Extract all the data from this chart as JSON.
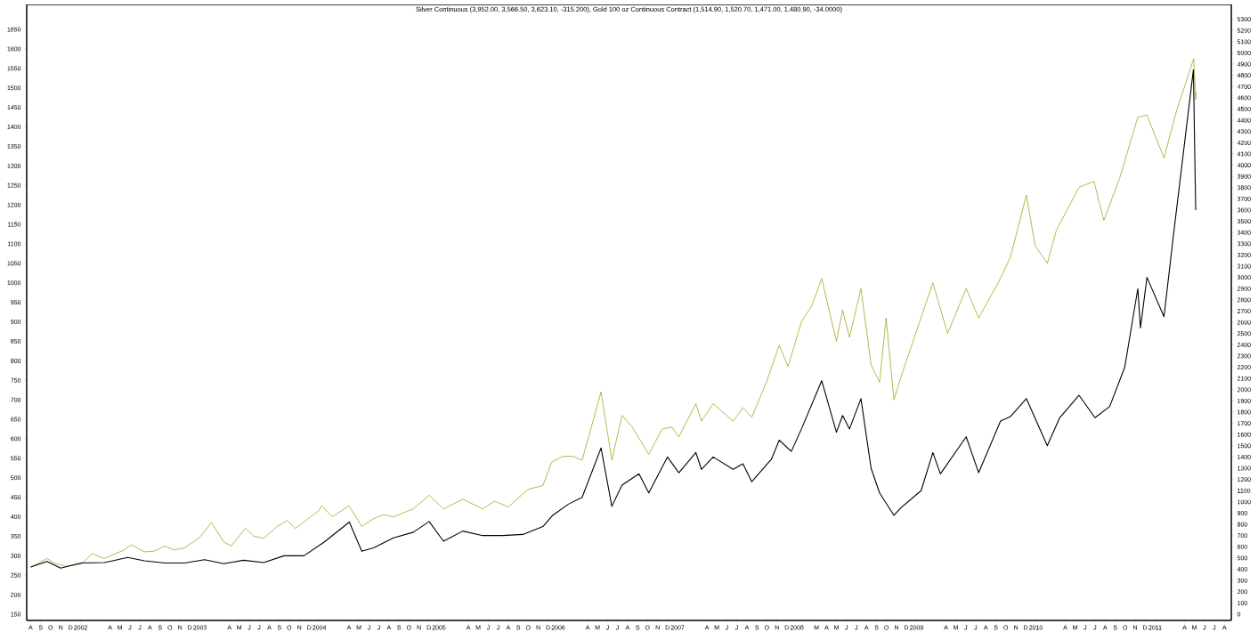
{
  "chart_data": {
    "type": "line",
    "title": "Silver Continuous (3,952.00, 3,566.50, 3,623.10, -315.200), Gold 100 oz Continuous Contract (1,514.90, 1,520.70, 1,471.00, 1,480.90, -34.0000)",
    "xlim": [
      "2001-07-20",
      "2011-08-22"
    ],
    "ylim": [
      134,
      1714
    ],
    "y2lim": [
      -56,
      5432
    ],
    "yticks": [
      150,
      200,
      250,
      300,
      350,
      400,
      450,
      500,
      550,
      600,
      650,
      700,
      750,
      800,
      850,
      900,
      950,
      1000,
      1050,
      1100,
      1150,
      1200,
      1250,
      1300,
      1350,
      1400,
      1450,
      1500,
      1550,
      1600,
      1650
    ],
    "y2ticks": [
      0,
      100,
      200,
      300,
      400,
      500,
      600,
      700,
      800,
      900,
      1000,
      1100,
      1200,
      1300,
      1400,
      1500,
      1600,
      1700,
      1800,
      1900,
      2000,
      2100,
      2200,
      2300,
      2400,
      2500,
      2600,
      2700,
      2800,
      2900,
      3000,
      3100,
      3200,
      3300,
      3400,
      3500,
      3600,
      3700,
      3800,
      3900,
      4000,
      4100,
      4200,
      4300,
      4400,
      4500,
      4600,
      4700,
      4800,
      4900,
      5000,
      5100,
      5200,
      5300
    ],
    "xticks": [
      {
        "value": "2001-08",
        "label": "A"
      },
      {
        "value": "2001-09",
        "label": "S"
      },
      {
        "value": "2001-10",
        "label": "O"
      },
      {
        "value": "2001-11",
        "label": "N"
      },
      {
        "value": "2001-12",
        "label": "D"
      },
      {
        "value": "2002-01",
        "label": "2002"
      },
      {
        "value": "2002-04",
        "label": "A"
      },
      {
        "value": "2002-05",
        "label": "M"
      },
      {
        "value": "2002-06",
        "label": "J"
      },
      {
        "value": "2002-07",
        "label": "J"
      },
      {
        "value": "2002-08",
        "label": "A"
      },
      {
        "value": "2002-09",
        "label": "S"
      },
      {
        "value": "2002-10",
        "label": "O"
      },
      {
        "value": "2002-11",
        "label": "N"
      },
      {
        "value": "2002-12",
        "label": "D"
      },
      {
        "value": "2003-01",
        "label": "2003"
      },
      {
        "value": "2003-04",
        "label": "A"
      },
      {
        "value": "2003-05",
        "label": "M"
      },
      {
        "value": "2003-06",
        "label": "J"
      },
      {
        "value": "2003-07",
        "label": "J"
      },
      {
        "value": "2003-08",
        "label": "A"
      },
      {
        "value": "2003-09",
        "label": "S"
      },
      {
        "value": "2003-10",
        "label": "O"
      },
      {
        "value": "2003-11",
        "label": "N"
      },
      {
        "value": "2003-12",
        "label": "D"
      },
      {
        "value": "2004-01",
        "label": "2004"
      },
      {
        "value": "2004-04",
        "label": "A"
      },
      {
        "value": "2004-05",
        "label": "M"
      },
      {
        "value": "2004-06",
        "label": "J"
      },
      {
        "value": "2004-07",
        "label": "J"
      },
      {
        "value": "2004-08",
        "label": "A"
      },
      {
        "value": "2004-09",
        "label": "S"
      },
      {
        "value": "2004-10",
        "label": "O"
      },
      {
        "value": "2004-11",
        "label": "N"
      },
      {
        "value": "2004-12",
        "label": "D"
      },
      {
        "value": "2005-01",
        "label": "2005"
      },
      {
        "value": "2005-04",
        "label": "A"
      },
      {
        "value": "2005-05",
        "label": "M"
      },
      {
        "value": "2005-06",
        "label": "J"
      },
      {
        "value": "2005-07",
        "label": "J"
      },
      {
        "value": "2005-08",
        "label": "A"
      },
      {
        "value": "2005-09",
        "label": "S"
      },
      {
        "value": "2005-10",
        "label": "O"
      },
      {
        "value": "2005-11",
        "label": "N"
      },
      {
        "value": "2005-12",
        "label": "D"
      },
      {
        "value": "2006-01",
        "label": "2006"
      },
      {
        "value": "2006-04",
        "label": "A"
      },
      {
        "value": "2006-05",
        "label": "M"
      },
      {
        "value": "2006-06",
        "label": "J"
      },
      {
        "value": "2006-07",
        "label": "J"
      },
      {
        "value": "2006-08",
        "label": "A"
      },
      {
        "value": "2006-09",
        "label": "S"
      },
      {
        "value": "2006-10",
        "label": "O"
      },
      {
        "value": "2006-11",
        "label": "N"
      },
      {
        "value": "2006-12",
        "label": "D"
      },
      {
        "value": "2007-01",
        "label": "2007"
      },
      {
        "value": "2007-04",
        "label": "A"
      },
      {
        "value": "2007-05",
        "label": "M"
      },
      {
        "value": "2007-06",
        "label": "J"
      },
      {
        "value": "2007-07",
        "label": "J"
      },
      {
        "value": "2007-08",
        "label": "A"
      },
      {
        "value": "2007-09",
        "label": "S"
      },
      {
        "value": "2007-10",
        "label": "O"
      },
      {
        "value": "2007-11",
        "label": "N"
      },
      {
        "value": "2007-12",
        "label": "D"
      },
      {
        "value": "2008-01",
        "label": "2008"
      },
      {
        "value": "2008-03",
        "label": "M"
      },
      {
        "value": "2008-04",
        "label": "A"
      },
      {
        "value": "2008-05",
        "label": "M"
      },
      {
        "value": "2008-06",
        "label": "J"
      },
      {
        "value": "2008-07",
        "label": "J"
      },
      {
        "value": "2008-08",
        "label": "A"
      },
      {
        "value": "2008-09",
        "label": "S"
      },
      {
        "value": "2008-10",
        "label": "O"
      },
      {
        "value": "2008-11",
        "label": "N"
      },
      {
        "value": "2008-12",
        "label": "D"
      },
      {
        "value": "2009-01",
        "label": "2009"
      },
      {
        "value": "2009-04",
        "label": "A"
      },
      {
        "value": "2009-05",
        "label": "M"
      },
      {
        "value": "2009-06",
        "label": "J"
      },
      {
        "value": "2009-07",
        "label": "J"
      },
      {
        "value": "2009-08",
        "label": "A"
      },
      {
        "value": "2009-09",
        "label": "S"
      },
      {
        "value": "2009-10",
        "label": "O"
      },
      {
        "value": "2009-11",
        "label": "N"
      },
      {
        "value": "2009-12",
        "label": "D"
      },
      {
        "value": "2010-01",
        "label": "2010"
      },
      {
        "value": "2010-04",
        "label": "A"
      },
      {
        "value": "2010-05",
        "label": "M"
      },
      {
        "value": "2010-06",
        "label": "J"
      },
      {
        "value": "2010-07",
        "label": "J"
      },
      {
        "value": "2010-08",
        "label": "A"
      },
      {
        "value": "2010-09",
        "label": "S"
      },
      {
        "value": "2010-10",
        "label": "O"
      },
      {
        "value": "2010-11",
        "label": "N"
      },
      {
        "value": "2010-12",
        "label": "D"
      },
      {
        "value": "2011-01",
        "label": "2011"
      },
      {
        "value": "2011-04",
        "label": "A"
      },
      {
        "value": "2011-05",
        "label": "M"
      },
      {
        "value": "2011-06",
        "label": "J"
      },
      {
        "value": "2011-07",
        "label": "J"
      },
      {
        "value": "2011-08",
        "label": "A"
      }
    ],
    "series": [
      {
        "color": "#999900",
        "x": [
          "2001-08-01",
          "2001-09-20",
          "2001-10-15",
          "2001-11-15",
          "2002-01-02",
          "2002-02-05",
          "2002-03-15",
          "2002-05-15",
          "2002-06-05",
          "2002-07-15",
          "2002-08-15",
          "2002-09-15",
          "2002-10-15",
          "2002-11-15",
          "2002-12-31",
          "2003-02-05",
          "2003-03-15",
          "2003-04-07",
          "2003-05-20",
          "2003-06-15",
          "2003-07-15",
          "2003-08-25",
          "2003-09-25",
          "2003-10-20",
          "2003-12-31",
          "2004-01-08",
          "2004-02-10",
          "2004-04-01",
          "2004-05-10",
          "2004-06-15",
          "2004-07-15",
          "2004-08-15",
          "2004-10-15",
          "2004-12-02",
          "2005-01-15",
          "2005-03-15",
          "2005-05-15",
          "2005-06-20",
          "2005-08-01",
          "2005-09-30",
          "2005-11-15",
          "2005-12-12",
          "2006-01-15",
          "2006-02-15",
          "2006-03-15",
          "2006-05-12",
          "2006-06-14",
          "2006-07-15",
          "2006-08-15",
          "2006-10-05",
          "2006-11-15",
          "2006-12-15",
          "2007-01-05",
          "2007-02-26",
          "2007-03-15",
          "2007-04-20",
          "2007-06-20",
          "2007-07-20",
          "2007-08-16",
          "2007-09-30",
          "2007-11-08",
          "2007-12-05",
          "2008-01-15",
          "2008-02-15",
          "2008-03-17",
          "2008-05-01",
          "2008-05-20",
          "2008-06-10",
          "2008-07-15",
          "2008-08-15",
          "2008-09-10",
          "2008-09-30",
          "2008-10-24",
          "2008-11-15",
          "2009-02-20",
          "2009-04-06",
          "2009-06-02",
          "2009-07-10",
          "2009-09-08",
          "2009-10-15",
          "2009-12-03",
          "2009-12-30",
          "2010-02-05",
          "2010-03-05",
          "2010-05-13",
          "2010-06-28",
          "2010-07-28",
          "2010-09-15",
          "2010-11-09",
          "2010-12-07",
          "2011-01-28",
          "2011-03-07",
          "2011-04-29",
          "2011-05-05",
          "2011-05-06"
        ],
        "values": [
          270,
          293,
          280,
          273,
          278,
          305,
          293,
          315,
          328,
          310,
          312,
          325,
          315,
          320,
          347,
          385,
          335,
          325,
          370,
          350,
          345,
          375,
          390,
          370,
          416,
          428,
          400,
          428,
          375,
          395,
          405,
          400,
          420,
          455,
          420,
          445,
          420,
          440,
          425,
          470,
          480,
          540,
          555,
          555,
          545,
          720,
          545,
          660,
          630,
          560,
          625,
          630,
          605,
          690,
          645,
          690,
          645,
          680,
          655,
          745,
          840,
          785,
          900,
          940,
          1011,
          850,
          930,
          860,
          985,
          790,
          745,
          910,
          700,
          760,
          1000,
          870,
          985,
          910,
          1000,
          1065,
          1225,
          1095,
          1050,
          1135,
          1245,
          1260,
          1160,
          1270,
          1425,
          1430,
          1320,
          1440,
          1575,
          1470,
          1490
        ]
      },
      {
        "color": "#000000",
        "axis": "y2",
        "x": [
          "2001-08-01",
          "2001-09-20",
          "2001-11-01",
          "2002-01-02",
          "2002-03-15",
          "2002-05-25",
          "2002-07-15",
          "2002-09-15",
          "2002-11-15",
          "2003-01-15",
          "2003-03-15",
          "2003-05-15",
          "2003-07-15",
          "2003-09-15",
          "2003-11-15",
          "2004-01-15",
          "2004-04-02",
          "2004-05-10",
          "2004-06-15",
          "2004-08-15",
          "2004-10-15",
          "2004-12-02",
          "2005-01-15",
          "2005-03-15",
          "2005-05-15",
          "2005-07-15",
          "2005-09-15",
          "2005-11-15",
          "2005-12-15",
          "2006-02-01",
          "2006-03-15",
          "2006-05-12",
          "2006-06-14",
          "2006-07-15",
          "2006-09-05",
          "2006-10-05",
          "2006-12-01",
          "2007-01-05",
          "2007-02-26",
          "2007-03-15",
          "2007-04-20",
          "2007-06-20",
          "2007-07-20",
          "2007-08-16",
          "2007-10-15",
          "2007-11-08",
          "2007-12-15",
          "2008-01-15",
          "2008-03-17",
          "2008-05-01",
          "2008-05-20",
          "2008-06-10",
          "2008-07-15",
          "2008-08-15",
          "2008-09-10",
          "2008-10-24",
          "2008-11-15",
          "2009-01-15",
          "2009-02-20",
          "2009-03-15",
          "2009-06-02",
          "2009-07-10",
          "2009-09-15",
          "2009-10-15",
          "2009-12-03",
          "2010-02-05",
          "2010-03-15",
          "2010-05-13",
          "2010-07-01",
          "2010-08-15",
          "2010-09-30",
          "2010-11-09",
          "2010-11-17",
          "2010-12-07",
          "2011-01-28",
          "2011-03-01",
          "2011-04-28",
          "2011-05-05"
        ],
        "values": [
          420,
          470,
          410,
          455,
          460,
          505,
          475,
          455,
          455,
          485,
          450,
          480,
          460,
          520,
          520,
          640,
          820,
          560,
          590,
          680,
          730,
          825,
          650,
          740,
          700,
          700,
          710,
          780,
          880,
          980,
          1040,
          1480,
          960,
          1150,
          1250,
          1080,
          1400,
          1260,
          1440,
          1290,
          1400,
          1290,
          1340,
          1180,
          1380,
          1550,
          1450,
          1650,
          2080,
          1620,
          1770,
          1650,
          1920,
          1300,
          1080,
          880,
          950,
          1100,
          1440,
          1250,
          1580,
          1260,
          1720,
          1760,
          1920,
          1500,
          1750,
          1950,
          1750,
          1850,
          2200,
          2900,
          2550,
          3000,
          2650,
          3450,
          4850,
          3600
        ]
      }
    ]
  }
}
